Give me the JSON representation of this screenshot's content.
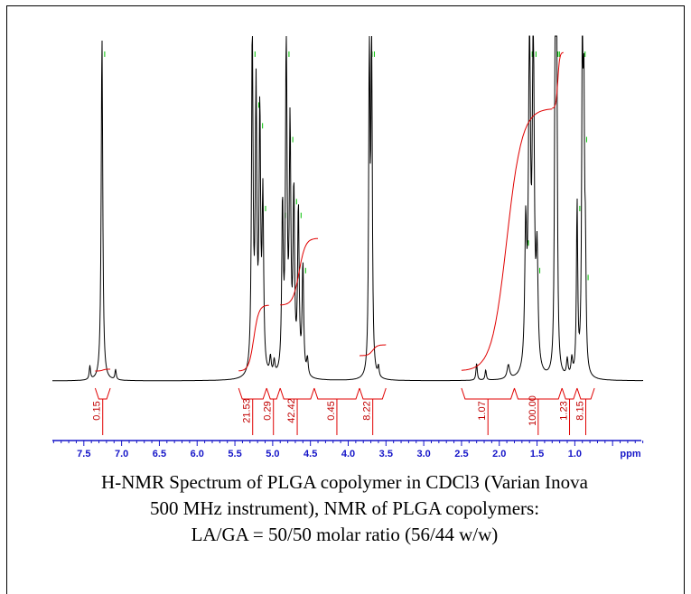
{
  "chart_data": {
    "type": "line",
    "title": "",
    "xlabel": "ppm",
    "ylabel": "",
    "x_reversed": true,
    "xlim": [
      8.0,
      0.0
    ],
    "x_tick_labels": [
      "7.5",
      "7.0",
      "6.5",
      "6.0",
      "5.5",
      "5.0",
      "4.5",
      "4.0",
      "3.5",
      "3.0",
      "2.5",
      "2.0",
      "1.5",
      "1.0"
    ],
    "x_tick_values": [
      7.5,
      7.0,
      6.5,
      6.0,
      5.5,
      5.0,
      4.5,
      4.0,
      3.5,
      3.0,
      2.5,
      2.0,
      1.5,
      1.0
    ],
    "minor_tick_step": 0.1,
    "colors": {
      "spectrum": "#000000",
      "integral": "#e00000",
      "peak_marker": "#00c000",
      "axis": "#1515c8",
      "integral_label": "#c00000"
    },
    "peaks": [
      {
        "ppm": 7.26,
        "height": 1.0,
        "width": 0.012
      },
      {
        "ppm": 7.42,
        "height": 0.04,
        "width": 0.01
      },
      {
        "ppm": 7.08,
        "height": 0.03,
        "width": 0.01
      },
      {
        "ppm": 5.27,
        "height": 1.0,
        "width": 0.012
      },
      {
        "ppm": 5.22,
        "height": 0.8,
        "width": 0.012
      },
      {
        "ppm": 5.17,
        "height": 0.74,
        "width": 0.012
      },
      {
        "ppm": 5.13,
        "height": 0.5,
        "width": 0.012
      },
      {
        "ppm": 5.03,
        "height": 0.05,
        "width": 0.012
      },
      {
        "ppm": 4.98,
        "height": 0.04,
        "width": 0.012
      },
      {
        "ppm": 4.87,
        "height": 0.48,
        "width": 0.012
      },
      {
        "ppm": 4.82,
        "height": 1.0,
        "width": 0.012
      },
      {
        "ppm": 4.77,
        "height": 0.7,
        "width": 0.012
      },
      {
        "ppm": 4.72,
        "height": 0.52,
        "width": 0.012
      },
      {
        "ppm": 4.66,
        "height": 0.48,
        "width": 0.012
      },
      {
        "ppm": 4.6,
        "height": 0.32,
        "width": 0.012
      },
      {
        "ppm": 4.54,
        "height": 0.05,
        "width": 0.012
      },
      {
        "ppm": 3.72,
        "height": 1.0,
        "width": 0.01
      },
      {
        "ppm": 3.69,
        "height": 1.0,
        "width": 0.01
      },
      {
        "ppm": 3.6,
        "height": 0.03,
        "width": 0.01
      },
      {
        "ppm": 2.3,
        "height": 0.05,
        "width": 0.01
      },
      {
        "ppm": 2.18,
        "height": 0.03,
        "width": 0.01
      },
      {
        "ppm": 1.88,
        "height": 0.04,
        "width": 0.02
      },
      {
        "ppm": 1.65,
        "height": 0.4,
        "width": 0.015
      },
      {
        "ppm": 1.6,
        "height": 1.0,
        "width": 0.015
      },
      {
        "ppm": 1.55,
        "height": 1.0,
        "width": 0.015
      },
      {
        "ppm": 1.5,
        "height": 0.32,
        "width": 0.015
      },
      {
        "ppm": 1.26,
        "height": 1.0,
        "width": 0.01
      },
      {
        "ppm": 1.24,
        "height": 1.0,
        "width": 0.01
      },
      {
        "ppm": 1.1,
        "height": 0.05,
        "width": 0.012
      },
      {
        "ppm": 1.04,
        "height": 0.05,
        "width": 0.012
      },
      {
        "ppm": 0.97,
        "height": 0.5,
        "width": 0.01
      },
      {
        "ppm": 0.9,
        "height": 1.0,
        "width": 0.01
      },
      {
        "ppm": 0.88,
        "height": 0.7,
        "width": 0.01
      },
      {
        "ppm": 0.86,
        "height": 0.3,
        "width": 0.01
      },
      {
        "ppm": 0.02,
        "height": 0.02,
        "width": 0.01
      }
    ],
    "integrals": [
      {
        "from": 7.35,
        "to": 7.15,
        "value": "0.15"
      },
      {
        "from": 5.45,
        "to": 5.08,
        "value": "21.53"
      },
      {
        "from": 5.08,
        "to": 4.9,
        "value": "0.29"
      },
      {
        "from": 4.9,
        "to": 4.45,
        "value": "42.42"
      },
      {
        "from": 4.45,
        "to": 3.85,
        "value": "0.45"
      },
      {
        "from": 3.85,
        "to": 3.5,
        "value": "8.22"
      },
      {
        "from": 2.5,
        "to": 1.8,
        "value": "1.07"
      },
      {
        "from": 1.8,
        "to": 1.17,
        "value": "100.00"
      },
      {
        "from": 1.17,
        "to": 0.97,
        "value": "1.23"
      },
      {
        "from": 0.97,
        "to": 0.74,
        "value": "8.15"
      }
    ]
  },
  "caption": {
    "line1": "H-NMR Spectrum of PLGA copolymer in CDCl3 (Varian Inova",
    "line2": "500 MHz instrument), NMR of PLGA copolymers:",
    "line3": "LA/GA = 50/50 molar ratio (56/44 w/w)"
  }
}
